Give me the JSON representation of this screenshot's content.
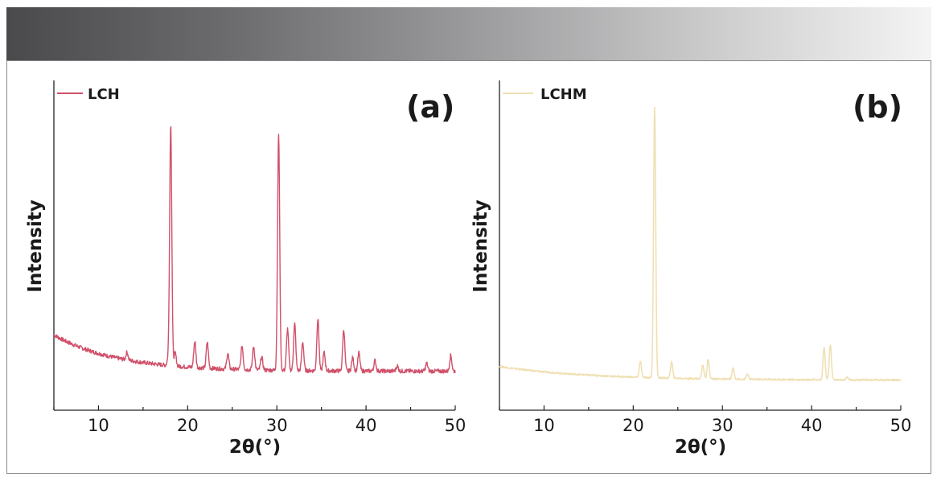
{
  "chart_data": [
    {
      "type": "line",
      "panel_label": "(a)",
      "legend": "LCH",
      "color": "#d0506a",
      "xlabel": "2θ(°)",
      "ylabel": "Intensity",
      "xlim": [
        5,
        50
      ],
      "ylim": [
        0,
        100
      ],
      "xticks": [
        "10",
        "20",
        "30",
        "40",
        "50"
      ],
      "xtick_values": [
        10,
        20,
        30,
        40,
        50
      ],
      "baseline": {
        "start": 16,
        "end": 2,
        "decay": 7
      },
      "peaks": [
        {
          "x": 13.2,
          "h": 3
        },
        {
          "x": 17.8,
          "h": 2
        },
        {
          "x": 18.1,
          "h": 93
        },
        {
          "x": 18.6,
          "h": 5
        },
        {
          "x": 20.8,
          "h": 10
        },
        {
          "x": 22.2,
          "h": 10
        },
        {
          "x": 24.5,
          "h": 6
        },
        {
          "x": 26.1,
          "h": 9
        },
        {
          "x": 27.4,
          "h": 9
        },
        {
          "x": 28.3,
          "h": 5
        },
        {
          "x": 30.2,
          "h": 91
        },
        {
          "x": 31.2,
          "h": 16
        },
        {
          "x": 32.0,
          "h": 18
        },
        {
          "x": 32.9,
          "h": 11
        },
        {
          "x": 34.6,
          "h": 20
        },
        {
          "x": 35.3,
          "h": 7
        },
        {
          "x": 37.5,
          "h": 16
        },
        {
          "x": 38.5,
          "h": 5
        },
        {
          "x": 39.2,
          "h": 7
        },
        {
          "x": 41.0,
          "h": 4
        },
        {
          "x": 43.5,
          "h": 2
        },
        {
          "x": 46.8,
          "h": 3
        },
        {
          "x": 49.5,
          "h": 6
        }
      ]
    },
    {
      "type": "line",
      "panel_label": "(b)",
      "legend": "LCHM",
      "color": "#efe0b4",
      "xlabel": "2θ(°)",
      "ylabel": "Intensity",
      "xlim": [
        5,
        50
      ],
      "ylim": [
        0,
        100
      ],
      "xticks": [
        "10",
        "20",
        "30",
        "40",
        "50"
      ],
      "xtick_values": [
        10,
        20,
        30,
        40,
        50
      ],
      "baseline": {
        "start": 6,
        "end": 1,
        "decay": 10
      },
      "peaks": [
        {
          "x": 20.8,
          "h": 6
        },
        {
          "x": 22.4,
          "h": 99
        },
        {
          "x": 24.3,
          "h": 6
        },
        {
          "x": 27.8,
          "h": 5
        },
        {
          "x": 28.4,
          "h": 7
        },
        {
          "x": 31.2,
          "h": 4
        },
        {
          "x": 32.8,
          "h": 2
        },
        {
          "x": 41.4,
          "h": 12
        },
        {
          "x": 42.1,
          "h": 13
        },
        {
          "x": 44.0,
          "h": 1
        }
      ]
    }
  ]
}
